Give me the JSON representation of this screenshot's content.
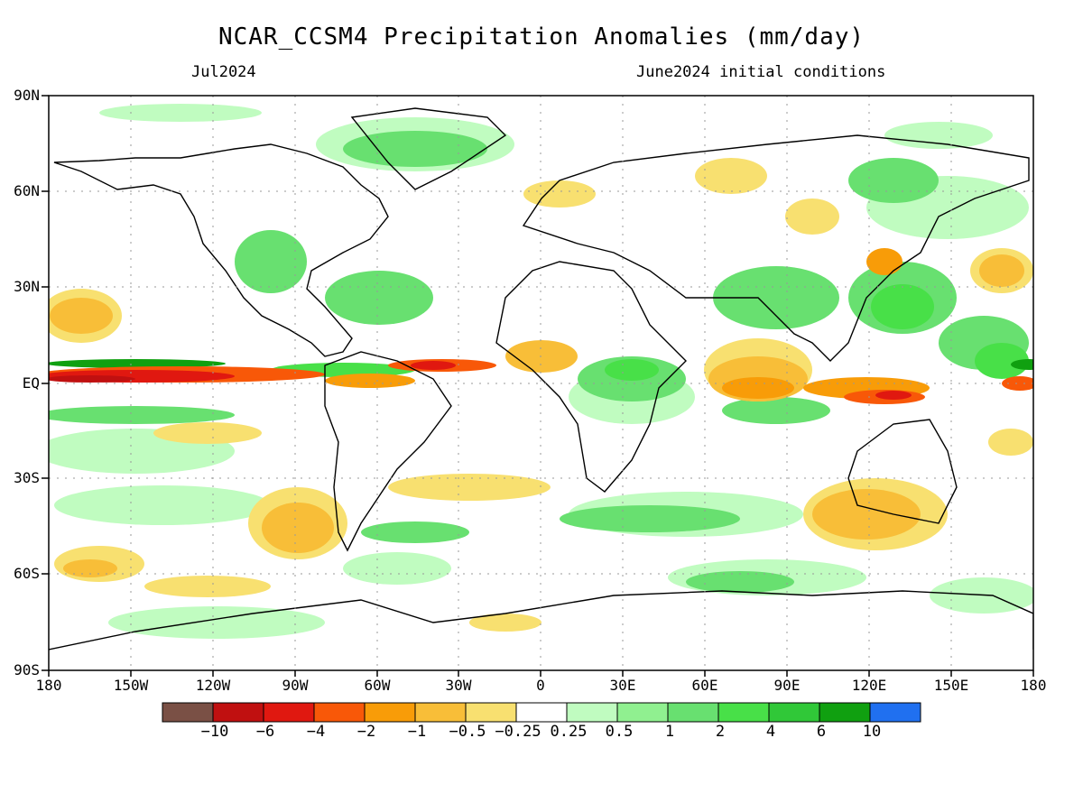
{
  "title": "NCAR_CCSM4 Precipitation Anomalies (mm/day)",
  "valid_month": "Jul2024",
  "initial_conditions": "June2024 initial conditions",
  "lat_labels": [
    "90N",
    "60N",
    "30N",
    "EQ",
    "30S",
    "60S",
    "90S"
  ],
  "lon_labels": [
    "180",
    "150W",
    "120W",
    "90W",
    "60W",
    "30W",
    "0",
    "30E",
    "60E",
    "90E",
    "120E",
    "150E",
    "180"
  ],
  "colorbar": {
    "colors": [
      "#7a5045",
      "#c01010",
      "#e01810",
      "#f85808",
      "#f89c08",
      "#f8be38",
      "#f8e070",
      "#ffffff",
      "#c0fcc0",
      "#90f090",
      "#68e070",
      "#48e048",
      "#30c838",
      "#10a010",
      "#2070f0"
    ],
    "labels": [
      "−10",
      "−6",
      "−4",
      "−2",
      "−1",
      "−0.5",
      "−0.25",
      "0.25",
      "0.5",
      "1",
      "2",
      "4",
      "6",
      "10"
    ]
  }
}
